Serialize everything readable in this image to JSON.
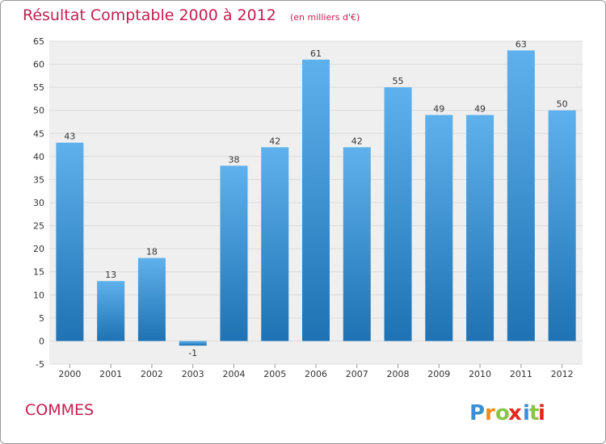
{
  "chart_data": {
    "type": "bar",
    "title": "Résultat Comptable 2000 à 2012",
    "subtitle": "(en milliers d'€)",
    "categories": [
      "2000",
      "2001",
      "2002",
      "2003",
      "2004",
      "2005",
      "2006",
      "2007",
      "2008",
      "2009",
      "2010",
      "2011",
      "2012"
    ],
    "values": [
      43,
      13,
      18,
      -1,
      38,
      42,
      61,
      42,
      55,
      49,
      49,
      63,
      50
    ],
    "ylim": [
      -5,
      65
    ],
    "yticks": [
      -5,
      0,
      5,
      10,
      15,
      20,
      25,
      30,
      35,
      40,
      45,
      50,
      55,
      60,
      65
    ],
    "grid": true,
    "xlabel": "",
    "ylabel": ""
  },
  "commune": "COMMES",
  "logo": {
    "letters": [
      "P",
      "r",
      "o",
      "x",
      "i",
      "t",
      "i"
    ],
    "colors": [
      "#3b8fd6",
      "#f28a1a",
      "#8bc34a",
      "#e2281e",
      "#3b8fd6",
      "#8bc34a",
      "#e2281e"
    ]
  },
  "colors": {
    "bar_top": "#5eb1ec",
    "bar_bottom": "#1f72b3",
    "grid": "#dcdcdc",
    "plot_bg": "#efefef",
    "title": "#c41e4f"
  }
}
